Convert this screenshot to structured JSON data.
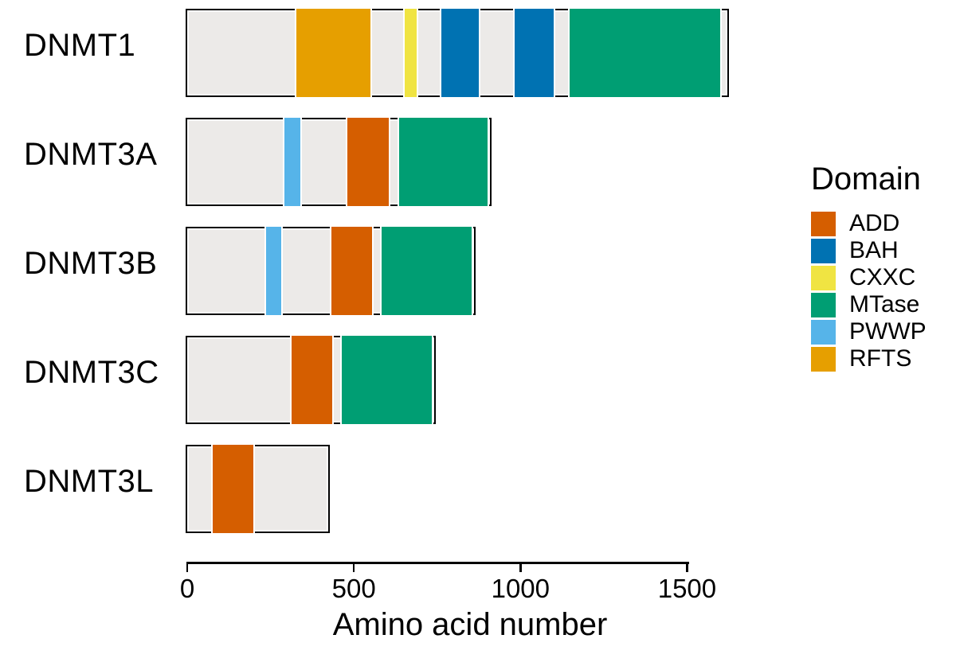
{
  "chart_data": {
    "type": "bar",
    "subtype": "protein-domain-architecture",
    "title": "",
    "xlabel": "Amino acid number",
    "ylabel": "",
    "x_ticks": [
      0,
      500,
      1000,
      1500
    ],
    "x_tick_labels": [
      "0",
      "500",
      "1000",
      "1500"
    ],
    "xlim": [
      0,
      1620
    ],
    "grid": false,
    "colors": {
      "chain_fill": "#ECEAE8",
      "outline": "#000000",
      "domain_edge": "#ffffff",
      "text": "#000000",
      "background": "#ffffff"
    },
    "legend": {
      "title": "Domain",
      "position": "right",
      "items": [
        {
          "label": "ADD",
          "color": "#D55E00"
        },
        {
          "label": "BAH",
          "color": "#0072B2"
        },
        {
          "label": "CXXC",
          "color": "#F0E442"
        },
        {
          "label": "MTase",
          "color": "#009E73"
        },
        {
          "label": "PWWP",
          "color": "#56B4E9"
        },
        {
          "label": "RFTS",
          "color": "#E69F00"
        }
      ]
    },
    "proteins": [
      {
        "name": "DNMT1",
        "length": 1620,
        "domains": [
          {
            "type": "RFTS",
            "start": 325,
            "end": 555
          },
          {
            "type": "CXXC",
            "start": 650,
            "end": 694
          },
          {
            "type": "BAH",
            "start": 760,
            "end": 880
          },
          {
            "type": "BAH",
            "start": 978,
            "end": 1105
          },
          {
            "type": "MTase",
            "start": 1145,
            "end": 1605
          }
        ]
      },
      {
        "name": "DNMT3A",
        "length": 908,
        "domains": [
          {
            "type": "PWWP",
            "start": 288,
            "end": 346
          },
          {
            "type": "ADD",
            "start": 478,
            "end": 610
          },
          {
            "type": "MTase",
            "start": 632,
            "end": 908
          }
        ]
      },
      {
        "name": "DNMT3B",
        "length": 859,
        "domains": [
          {
            "type": "PWWP",
            "start": 232,
            "end": 289
          },
          {
            "type": "ADD",
            "start": 430,
            "end": 560
          },
          {
            "type": "MTase",
            "start": 580,
            "end": 859
          }
        ]
      },
      {
        "name": "DNMT3C",
        "length": 739,
        "domains": [
          {
            "type": "ADD",
            "start": 310,
            "end": 440
          },
          {
            "type": "MTase",
            "start": 460,
            "end": 739
          }
        ]
      },
      {
        "name": "DNMT3L",
        "length": 421,
        "domains": [
          {
            "type": "ADD",
            "start": 72,
            "end": 205
          }
        ]
      }
    ]
  }
}
